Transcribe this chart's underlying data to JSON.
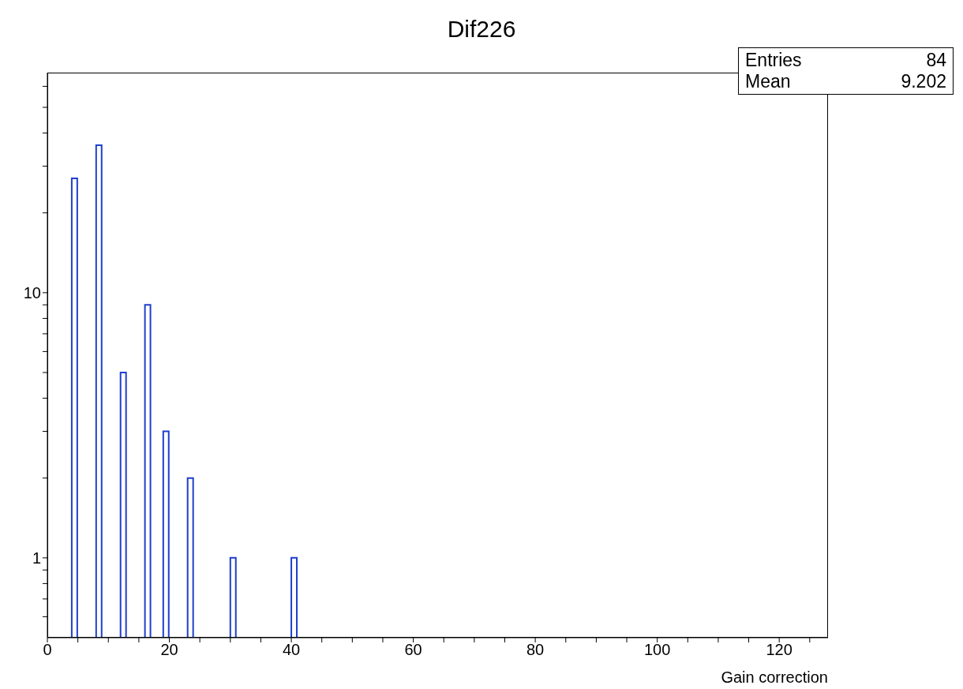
{
  "chart_data": {
    "type": "histogram",
    "title": "Dif226",
    "xlabel": "Gain correction",
    "annotations": [
      "Entries",
      "84",
      "Mean",
      "9.202"
    ],
    "bins": [
      4,
      5,
      6,
      7,
      8,
      9,
      10,
      11,
      12,
      13,
      14,
      15,
      16,
      17,
      18,
      19,
      20,
      21,
      22,
      23,
      24,
      25,
      26,
      27,
      28,
      29,
      30,
      31,
      32,
      33,
      34,
      35,
      36,
      37,
      38,
      39,
      40,
      41
    ],
    "values": [
      27,
      null,
      null,
      null,
      36,
      null,
      null,
      null,
      5,
      null,
      null,
      null,
      9,
      null,
      null,
      3,
      null,
      null,
      null,
      2,
      null,
      null,
      null,
      null,
      null,
      null,
      1,
      null,
      null,
      null,
      null,
      null,
      null,
      null,
      null,
      null,
      1
    ],
    "color": "#1f3fcc",
    "log": "y",
    "grid": false,
    "legend": false,
    "xlim": [
      0,
      128
    ],
    "xticks": [
      0,
      {
        "value": 5,
        "label": null
      },
      {
        "value": 10,
        "label": null
      },
      {
        "value": 15,
        "label": null
      },
      20,
      {
        "value": 25,
        "label": null
      },
      {
        "value": 30,
        "label": null
      },
      {
        "value": 35,
        "label": null
      },
      40,
      {
        "value": 45,
        "label": null
      },
      {
        "value": 50,
        "label": null
      },
      {
        "value": 55,
        "label": null
      },
      60,
      {
        "value": 65,
        "label": null
      },
      {
        "value": 70,
        "label": null
      },
      {
        "value": 75,
        "label": null
      },
      80,
      {
        "value": 85,
        "label": null
      },
      {
        "value": 90,
        "label": null
      },
      {
        "value": 95,
        "label": null
      },
      100,
      {
        "value": 105,
        "label": null
      },
      {
        "value": 110,
        "label": null
      },
      {
        "value": 115,
        "label": null
      },
      120,
      {
        "value": 125,
        "label": null
      }
    ],
    "ylim": [
      0.5,
      67.6
    ],
    "yticks": [
      {
        "value": 0.6,
        "label": null
      },
      {
        "value": 0.7,
        "label": null
      },
      {
        "value": 0.8,
        "label": null
      },
      {
        "value": 0.9,
        "label": null
      },
      1,
      {
        "value": 2,
        "label": null
      },
      {
        "value": 3,
        "label": null
      },
      {
        "value": 4,
        "label": null
      },
      {
        "value": 5,
        "label": null
      },
      {
        "value": 6,
        "label": null
      },
      {
        "value": 7,
        "label": null
      },
      {
        "value": 8,
        "label": null
      },
      {
        "value": 9,
        "label": null
      },
      10,
      {
        "value": 20,
        "label": null
      },
      {
        "value": 30,
        "label": null
      },
      {
        "value": 40,
        "label": null
      },
      {
        "value": 50,
        "label": null
      },
      {
        "value": 60,
        "label": null
      }
    ]
  }
}
